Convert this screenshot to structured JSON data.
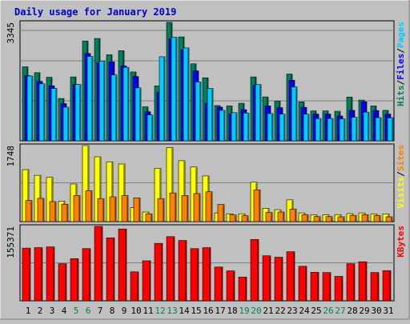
{
  "colors": {
    "background": "#c0c0c0",
    "plot_bg": "#c0c0c0",
    "title": "#0000cc",
    "hits": "#00805c",
    "files": "#0000ff",
    "pages": "#00ccff",
    "visits": "#ffff00",
    "sites": "#ff8000",
    "kbytes": "#ff0000",
    "day_normal": "#000000",
    "day_weekend": "#00805c"
  },
  "chart_data": [
    {
      "type": "bar",
      "panel": "top",
      "title": "Daily usage for January 2019",
      "categories": [
        "1",
        "2",
        "3",
        "4",
        "5",
        "6",
        "7",
        "8",
        "9",
        "10",
        "11",
        "12",
        "13",
        "14",
        "15",
        "16",
        "17",
        "18",
        "19",
        "20",
        "21",
        "22",
        "23",
        "24",
        "25",
        "26",
        "27",
        "28",
        "29",
        "30",
        "31"
      ],
      "weekend_days": [
        "5",
        "6",
        "12",
        "13",
        "19",
        "20",
        "26",
        "27"
      ],
      "ymax_label": "3345",
      "ylim": [
        0,
        3345
      ],
      "legend": [
        {
          "text": "Hits",
          "color": "#00805c"
        },
        {
          "text": "/",
          "color": "#000000"
        },
        {
          "text": "Files",
          "color": "#0000ff"
        },
        {
          "text": "/",
          "color": "#000000"
        },
        {
          "text": "Pages",
          "color": "#00ccff"
        }
      ],
      "series": [
        {
          "name": "Hits",
          "values": [
            2090,
            1925,
            1795,
            1195,
            1805,
            2820,
            2890,
            2430,
            2545,
            1945,
            960,
            1550,
            3345,
            2935,
            2175,
            1780,
            995,
            985,
            1060,
            1805,
            1240,
            1120,
            1885,
            1100,
            845,
            845,
            835,
            1235,
            1150,
            985,
            860
          ]
        },
        {
          "name": "Files",
          "values": [
            1840,
            1680,
            1555,
            1050,
            1590,
            2465,
            2210,
            2230,
            2115,
            1815,
            820,
            1375,
            2880,
            2575,
            1975,
            1060,
            950,
            760,
            880,
            1570,
            985,
            935,
            1710,
            945,
            755,
            755,
            700,
            860,
            1105,
            855,
            755
          ]
        },
        {
          "name": "Pages",
          "values": [
            1830,
            1610,
            1480,
            950,
            1590,
            2385,
            2250,
            1860,
            2075,
            1495,
            730,
            2375,
            2925,
            2625,
            1665,
            1480,
            860,
            795,
            785,
            1590,
            770,
            755,
            1520,
            755,
            630,
            630,
            620,
            665,
            810,
            655,
            650
          ]
        }
      ]
    },
    {
      "type": "bar",
      "panel": "middle",
      "categories": [
        "1",
        "2",
        "3",
        "4",
        "5",
        "6",
        "7",
        "8",
        "9",
        "10",
        "11",
        "12",
        "13",
        "14",
        "15",
        "16",
        "17",
        "18",
        "19",
        "20",
        "21",
        "22",
        "23",
        "24",
        "25",
        "26",
        "27",
        "28",
        "29",
        "30",
        "31"
      ],
      "ymax_label": "1748",
      "ylim": [
        0,
        1748
      ],
      "legend": [
        {
          "text": "Visits",
          "color": "#ffff00"
        },
        {
          "text": "/",
          "color": "#000000"
        },
        {
          "text": "Sites",
          "color": "#ff8000"
        }
      ],
      "series": [
        {
          "name": "Visits",
          "values": [
            1195,
            1065,
            1020,
            470,
            865,
            1748,
            1490,
            1375,
            1325,
            320,
            220,
            1225,
            1700,
            1400,
            1255,
            1050,
            200,
            180,
            180,
            905,
            305,
            275,
            500,
            200,
            155,
            155,
            160,
            185,
            200,
            175,
            175
          ]
        },
        {
          "name": "Sites",
          "values": [
            485,
            535,
            460,
            400,
            600,
            710,
            530,
            570,
            600,
            545,
            180,
            530,
            660,
            600,
            645,
            685,
            395,
            155,
            135,
            730,
            210,
            220,
            285,
            160,
            115,
            115,
            110,
            145,
            160,
            140,
            110
          ]
        }
      ]
    },
    {
      "type": "bar",
      "panel": "bottom",
      "categories": [
        "1",
        "2",
        "3",
        "4",
        "5",
        "6",
        "7",
        "8",
        "9",
        "10",
        "11",
        "12",
        "13",
        "14",
        "15",
        "16",
        "17",
        "18",
        "19",
        "20",
        "21",
        "22",
        "23",
        "24",
        "25",
        "26",
        "27",
        "28",
        "29",
        "30",
        "31"
      ],
      "ymax_label": "155371",
      "ylim": [
        0,
        155371
      ],
      "legend": [
        {
          "text": "KBytes",
          "color": "#ff0000"
        }
      ],
      "series": [
        {
          "name": "KBytes",
          "values": [
            110000,
            111000,
            112500,
            77500,
            88000,
            109000,
            155371,
            131500,
            150000,
            60500,
            83500,
            120000,
            134000,
            126000,
            109000,
            111000,
            70500,
            62500,
            49500,
            128000,
            94000,
            91000,
            102500,
            72000,
            59500,
            59000,
            51000,
            77500,
            81500,
            59000,
            63000
          ]
        }
      ]
    }
  ]
}
